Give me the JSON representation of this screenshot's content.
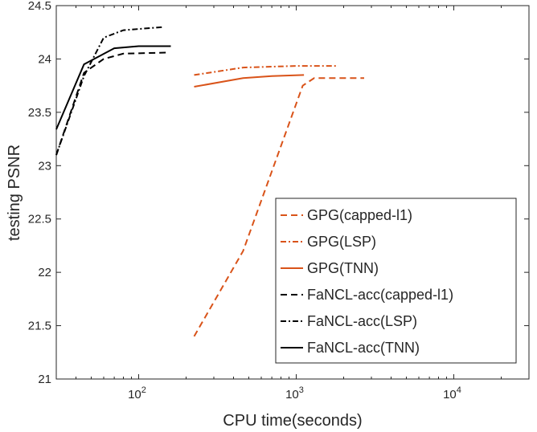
{
  "chart_data": {
    "type": "line",
    "title": "",
    "xlabel": "CPU time(seconds)",
    "ylabel": "testing PSNR",
    "xscale": "log",
    "xlim": [
      30,
      30000
    ],
    "ylim": [
      21,
      24.5
    ],
    "xticks": [
      {
        "value": 100,
        "base": "10",
        "exp": "2"
      },
      {
        "value": 1000,
        "base": "10",
        "exp": "3"
      },
      {
        "value": 10000,
        "base": "10",
        "exp": "4"
      }
    ],
    "yticks": [
      {
        "value": 21,
        "label": "21"
      },
      {
        "value": 21.5,
        "label": "21.5"
      },
      {
        "value": 22,
        "label": "22"
      },
      {
        "value": 22.5,
        "label": "22.5"
      },
      {
        "value": 23,
        "label": "23"
      },
      {
        "value": 23.5,
        "label": "23.5"
      },
      {
        "value": 24,
        "label": "24"
      },
      {
        "value": 24.5,
        "label": "24.5"
      }
    ],
    "grid": false,
    "legend_position": "bottom-right",
    "series": [
      {
        "name": "GPG(capped-l1)",
        "color": "#D95319",
        "dash": "dashed",
        "x": [
          225,
          460,
          1100,
          1300,
          2700
        ],
        "y": [
          21.4,
          22.2,
          23.75,
          23.82,
          23.82
        ]
      },
      {
        "name": "GPG(LSP)",
        "color": "#D95319",
        "dash": "dashdot",
        "x": [
          225,
          460,
          1000,
          1850
        ],
        "y": [
          23.85,
          23.92,
          23.935,
          23.935
        ]
      },
      {
        "name": "GPG(TNN)",
        "color": "#D95319",
        "dash": "solid",
        "x": [
          225,
          460,
          700,
          1120
        ],
        "y": [
          23.74,
          23.82,
          23.84,
          23.85
        ]
      },
      {
        "name": "FaNCL-acc(capped-l1)",
        "color": "#000000",
        "dash": "dashed",
        "x": [
          30,
          45,
          60,
          80,
          150
        ],
        "y": [
          23.1,
          23.87,
          24.0,
          24.05,
          24.06
        ]
      },
      {
        "name": "FaNCL-acc(LSP)",
        "color": "#000000",
        "dash": "dashdot",
        "x": [
          30,
          45,
          60,
          80,
          145
        ],
        "y": [
          23.1,
          23.84,
          24.2,
          24.27,
          24.3
        ]
      },
      {
        "name": "FaNCL-acc(TNN)",
        "color": "#000000",
        "dash": "solid",
        "x": [
          30,
          45,
          70,
          100,
          160
        ],
        "y": [
          23.34,
          23.95,
          24.1,
          24.12,
          24.12
        ]
      }
    ]
  }
}
